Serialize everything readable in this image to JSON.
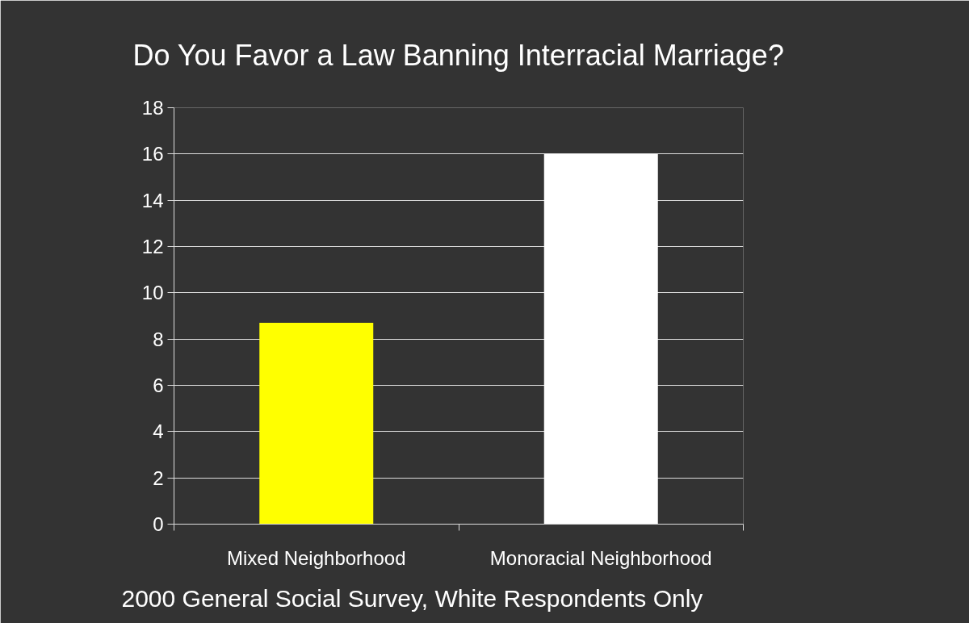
{
  "chart_data": {
    "type": "bar",
    "title": "Do You Favor a Law Banning Interracial Marriage?",
    "categories": [
      "Mixed Neighborhood",
      "Monoracial Neighborhood"
    ],
    "values": [
      8.7,
      16.0
    ],
    "colors": [
      "#ffff00",
      "#ffffff"
    ],
    "ylim": [
      0,
      18
    ],
    "yticks": [
      0,
      2,
      4,
      6,
      8,
      10,
      12,
      14,
      16,
      18
    ],
    "grid": "y",
    "annotations": [
      "2000 General Social Survey, White Respondents Only"
    ]
  }
}
